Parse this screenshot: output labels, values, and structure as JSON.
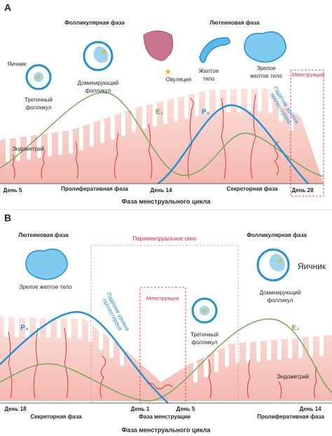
{
  "panel_a": {
    "letter": "A",
    "follicular_phase": "Фолликулярная фаза",
    "luteal_phase": "Лютеиновая фаза",
    "ovary": "Яичник",
    "tertiary_follicle": [
      "Третичный",
      "фолликул"
    ],
    "dominant_follicle": [
      "Доминирующий",
      "фолликул"
    ],
    "ovulation": "Овуляция",
    "corpus_luteum": [
      "Желтое",
      "тело"
    ],
    "mature_corpus_luteum": [
      "Зрелое",
      "желтое тело"
    ],
    "menstruation": "Менструация",
    "progesterone_drop": [
      "Падение уровня",
      "прогестерона"
    ],
    "e2": "E₂",
    "p4": "P₄",
    "endometrium": "Эндометрий",
    "day_start": "День 5",
    "proliferative_phase": "Пролиферативная фаза",
    "day_mid": "День 14",
    "secretory_phase": "Секреторная фаза",
    "day_end": "День 28",
    "axis_title": "Фаза менструального цикла"
  },
  "panel_b": {
    "letter": "B",
    "luteal_phase": "Лютеиновая фаза",
    "perimenstrual_window": "Периментруальное окно",
    "follicular_phase": "Фолликулярная фаза",
    "ovary": "Яичник",
    "mature_corpus_luteum": "Зрелое желтое тело",
    "dominant_follicle": [
      "Доминирующий",
      "фолликул"
    ],
    "menstruation": "Менструация",
    "progesterone_drop": [
      "Падение уровня",
      "прогестерона"
    ],
    "tertiary_follicle": [
      "Третичный",
      "фолликул"
    ],
    "p4": "P₄",
    "e2": "E₂",
    "endometrium": "Эндометрий",
    "day_1": "День 18",
    "day_2": "День 1",
    "day_3": "День 5",
    "day_4": "День 14",
    "secretory_phase": "Секреторная фаза",
    "menstrual_phase": "Фаза менструации",
    "proliferative_phase": "Пролиферативная фаза",
    "axis_title": "Фаза менструального цикла"
  }
}
